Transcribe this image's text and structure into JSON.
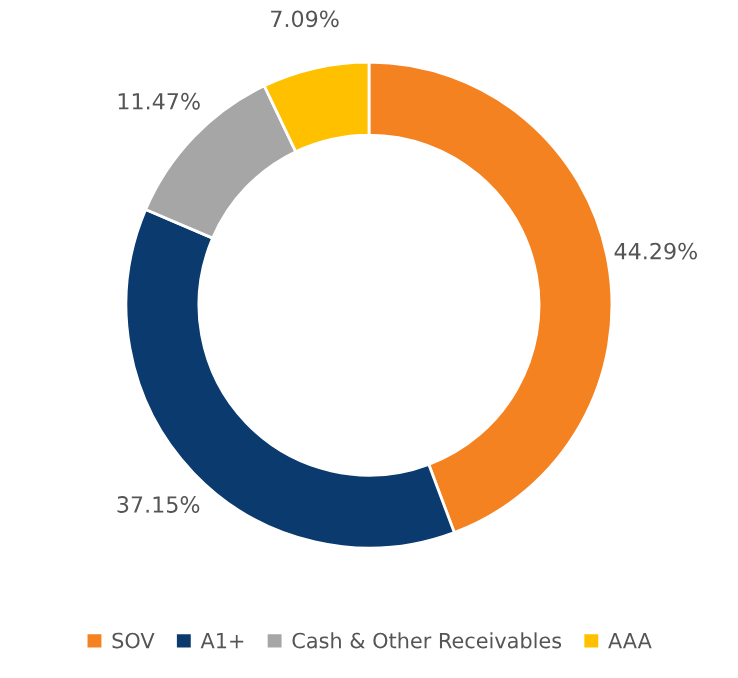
{
  "chart_data": {
    "type": "donut",
    "categories": [
      "SOV",
      "A1+",
      "Cash & Other Receivables",
      "AAA"
    ],
    "values": [
      44.29,
      37.15,
      11.47,
      7.09
    ],
    "colors": [
      "#f58220",
      "#0b3a6e",
      "#a6a6a6",
      "#ffc000"
    ],
    "value_labels": [
      "44.29%",
      "37.15%",
      "11.47%",
      "7.09%"
    ],
    "legend": "bottom"
  }
}
